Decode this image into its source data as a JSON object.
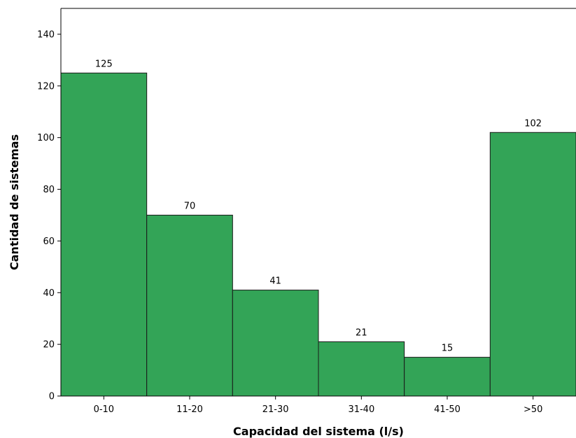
{
  "chart_data": {
    "type": "bar",
    "title": "",
    "xlabel": "Capacidad del sistema (l/s)",
    "ylabel": "Cantidad de sistemas",
    "categories": [
      "0-10",
      "11-20",
      "21-30",
      "31-40",
      "41-50",
      ">50"
    ],
    "values": [
      125,
      70,
      41,
      21,
      15,
      102
    ],
    "data_labels": [
      "125",
      "70",
      "41",
      "21",
      "15",
      "102"
    ],
    "ylim": [
      0,
      150
    ],
    "yticks": [
      0,
      20,
      40,
      60,
      80,
      100,
      120,
      140
    ],
    "ytick_labels": [
      "0",
      "20",
      "40",
      "60",
      "80",
      "100",
      "120",
      "140"
    ],
    "bar_color": "#33a457",
    "bar_edge_color": "#1a1a1a",
    "grid": false,
    "legend": "none"
  }
}
